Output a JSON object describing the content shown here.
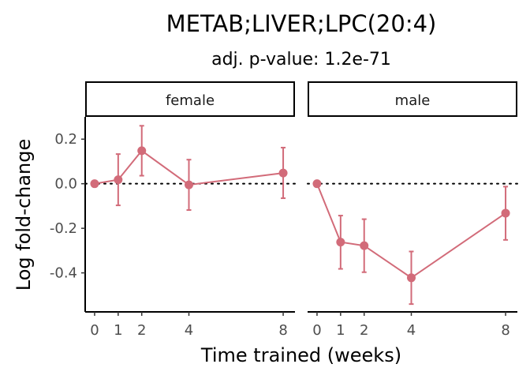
{
  "chart_data": {
    "type": "line",
    "title": "METAB;LIVER;LPC(20:4)",
    "subtitle": "adj. p-value: 1.2e-71",
    "xlabel": "Time trained (weeks)",
    "ylabel": "Log fold-change",
    "x_ticks": [
      0,
      1,
      2,
      4,
      8
    ],
    "y_ticks": [
      0.2,
      0.0,
      -0.2,
      -0.4
    ],
    "y_tick_labels": [
      "0.2",
      "0.0",
      "-0.2",
      "-0.4"
    ],
    "xlim": [
      -0.4,
      8.5
    ],
    "ylim": [
      -0.575,
      0.3
    ],
    "reference_line": 0,
    "series_color": "#d26b79",
    "facets": [
      {
        "label": "female",
        "x": [
          0,
          1,
          2,
          4,
          8
        ],
        "y": [
          0.0,
          0.018,
          0.148,
          -0.005,
          0.048
        ],
        "err_low": [
          0.0,
          -0.097,
          0.036,
          -0.118,
          -0.065
        ],
        "err_high": [
          0.0,
          0.133,
          0.26,
          0.108,
          0.162
        ]
      },
      {
        "label": "male",
        "x": [
          0,
          1,
          2,
          4,
          8
        ],
        "y": [
          0.0,
          -0.262,
          -0.278,
          -0.422,
          -0.132
        ],
        "err_low": [
          0.0,
          -0.382,
          -0.397,
          -0.54,
          -0.252
        ],
        "err_high": [
          0.0,
          -0.143,
          -0.159,
          -0.304,
          -0.013
        ]
      }
    ]
  }
}
